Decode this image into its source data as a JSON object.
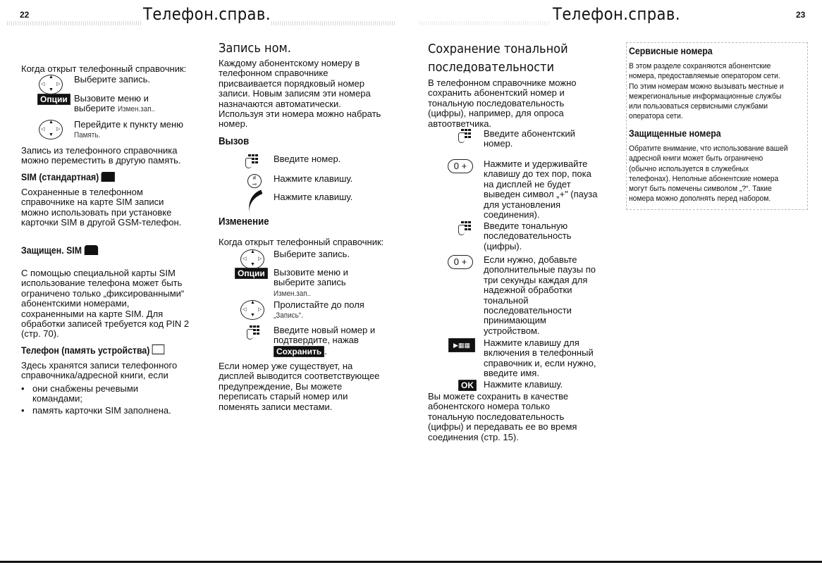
{
  "header": {
    "left_page": "22",
    "right_page": "23",
    "left_title": "Телефон.справ.",
    "right_title": "Телефон.справ."
  },
  "col1": {
    "intro": "Когда открыт телефонный справочник:",
    "steps": [
      {
        "icon": "nav-key-icon",
        "text": "Выберите запись."
      },
      {
        "icon": "options-softkey",
        "label": "Опции",
        "text": "Вызовите меню и\nвыберите ",
        "menu": "Измен.зап.."
      },
      {
        "icon": "nav-key-icon",
        "text": "Перейдите к пункту меню\n",
        "menu": "Память."
      }
    ],
    "para1": "Запись из телефонного справочника\nможно переместить в другую память.",
    "sim_heading": "SIM (стандартная)",
    "sim_text": "Сохраненные в телефонном\nсправочнике на карте SIM записи\nможно использовать при установке\nкарточки SIM в другой GSM-телефон.",
    "protected_heading": "Защищен. SIM",
    "protected_text": "С помощью специальной карты SIM\nиспользование телефона может быть\nограничено только „фиксированными“\nабонентскими номерами,\nсохраненными на карте SIM. Для\nобработки записей требуется код PIN 2\n(стр. 70).",
    "phone_heading": "Телефон (память устройства)",
    "phone_text": "Здесь хранятся записи телефонного\nсправочника/адресной книги, если",
    "bullets": [
      "они снабжены речевыми\nкомандами;",
      "память карточки SIM заполнена."
    ]
  },
  "col2": {
    "heading": "Запись ном.",
    "para": "Каждому абонентскому номеру в\nтелефонном справочнике\nприсваивается порядковый номер\nзаписи. Новым записям эти номера\nназначаются автоматически.\nИспользуя эти номера можно набрать\nномер.",
    "call_heading": "Вызов",
    "call_steps": [
      {
        "icon": "keypad-icon",
        "text": "Введите номер."
      },
      {
        "icon": "hash-key-icon",
        "text": "Нажмите клавишу."
      },
      {
        "icon": "call-key-icon",
        "text": "Нажмите клавишу."
      }
    ],
    "edit_heading": "Изменение",
    "edit_intro": "Когда открыт телефонный справочник:",
    "edit_steps": [
      {
        "icon": "nav-key-icon",
        "text": "Выберите запись."
      },
      {
        "icon": "options-softkey",
        "label": "Опции",
        "text": "Вызовите меню и\nвыберите запись\n",
        "menu": "Измен.зап.."
      },
      {
        "icon": "nav-key-icon",
        "text": "Пролистайте до поля\n",
        "menu": "„Запись“."
      },
      {
        "icon": "keypad-icon",
        "text": "Введите новый номер и\nподтвердите, нажав\n",
        "softkey": "Сохранить",
        "post": "."
      }
    ],
    "para2": "Если номер уже существует, на\nдисплей выводится соответствующее\nпредупреждение, Вы можете\nпереписать старый номер или\nпоменять записи местами."
  },
  "col3": {
    "heading": "Сохранение тональной\nпоследовательности",
    "para": "В телефонном справочнике можно\nсохранить абонентский номер и\nтональную последовательность\n(цифры), например, для опроса\nавтоответчика.",
    "steps": [
      {
        "icon": "keypad-icon",
        "text": "Введите абонентский\nномер."
      },
      {
        "icon": "zero-plus-key",
        "label": "0 +",
        "text": "Нажмите и удерживайте\nклавишу до тех пор, пока\nна дисплей не будет\nвыведен символ „+\" (пауза\nдля установления\nсоединения)."
      },
      {
        "icon": "keypad-icon",
        "text": "Введите тональную\nпоследовательность\n(цифры)."
      },
      {
        "icon": "zero-plus-key",
        "label": "0 +",
        "text": "Если нужно, добавьте\nдополнительные паузы по\nтри секунды каждая для\nнадежной обработки\nтональной\nпоследовательности\nпринимающим\nустройством."
      },
      {
        "icon": "save-to-phonebook-key",
        "text": "Нажмите клавишу для\nвключения в телефонный\nсправочник и, если нужно,\nвведите имя."
      },
      {
        "icon": "ok-softkey",
        "label": "OK",
        "text": "Нажмите клавишу."
      }
    ],
    "para2": "Вы можете сохранить в качестве\nабонентского номера только\nтональную последовательность\n(цифры) и передавать ее во время\nсоединения (стр. 15)."
  },
  "col4": {
    "service_heading": "Сервисные номера",
    "service_text": "В этом разделе сохраняются абонентские\nномера, предоставляемые оператором сети.\nПо этим номерам можно вызывать местные и\nмежрегиональные информационные службы\nили пользоваться сервисными службами\nоператора сети.",
    "protected_heading": "Защищенные номера",
    "protected_text": "Обратите внимание, что использование вашей\nадресной книги может быть ограничено\n(обычно используется в служебных\nтелефонах). Неполные абонентские номера\nмогут быть помечены символом „?“. Такие\nномера можно дополнять перед набором."
  }
}
